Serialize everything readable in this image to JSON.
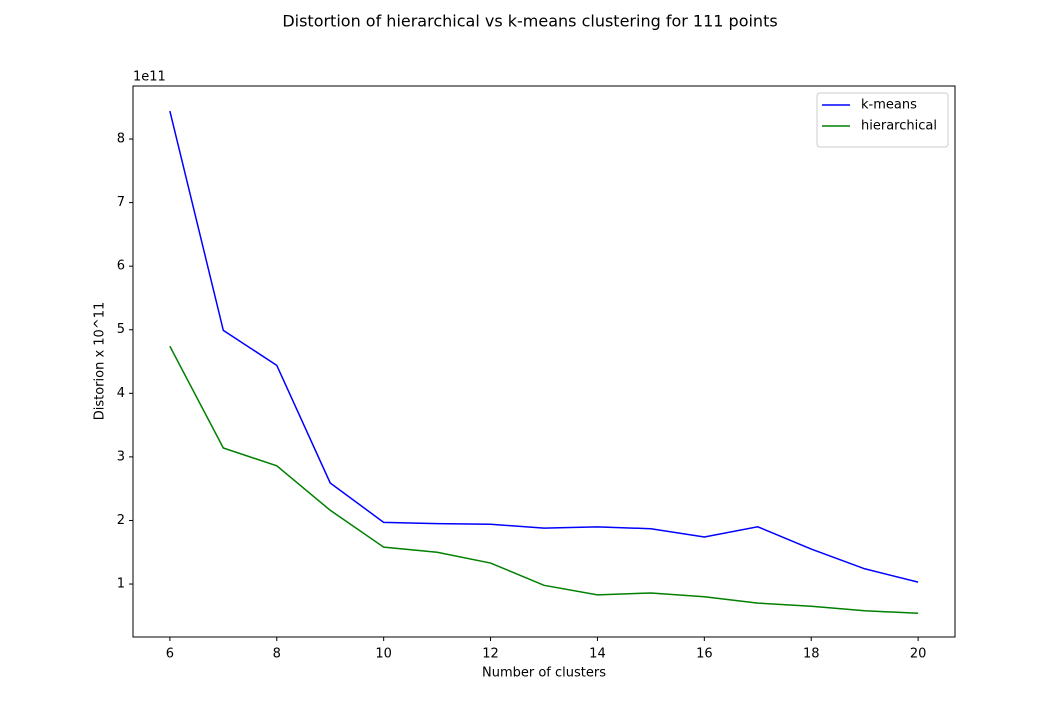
{
  "chart_data": {
    "type": "line",
    "title": "Distortion of hierarchical vs k-means clustering for 111 points",
    "x_label": "Number of clusters",
    "y_label": "Distorion x 10^11",
    "y_offset_label": "1e11",
    "x": [
      6,
      7,
      8,
      9,
      10,
      11,
      12,
      13,
      14,
      15,
      16,
      17,
      18,
      19,
      20
    ],
    "series": [
      {
        "name": "k-means",
        "color": "#0000ff",
        "values": [
          8.44,
          4.99,
          4.44,
          2.59,
          1.97,
          1.95,
          1.94,
          1.88,
          1.9,
          1.87,
          1.74,
          1.9,
          1.55,
          1.24,
          1.03
        ]
      },
      {
        "name": "hierarchical",
        "color": "#008000",
        "values": [
          4.74,
          3.14,
          2.86,
          2.16,
          1.58,
          1.5,
          1.33,
          0.98,
          0.83,
          0.86,
          0.8,
          0.7,
          0.65,
          0.58,
          0.54
        ]
      }
    ],
    "xlim": [
      5.31,
      20.69
    ],
    "ylim": [
      0.167,
      8.834
    ],
    "xticks": [
      6,
      8,
      10,
      12,
      14,
      16,
      18,
      20
    ],
    "yticks": [
      1,
      2,
      3,
      4,
      5,
      6,
      7,
      8
    ],
    "grid": false,
    "legend": "upper-right"
  }
}
